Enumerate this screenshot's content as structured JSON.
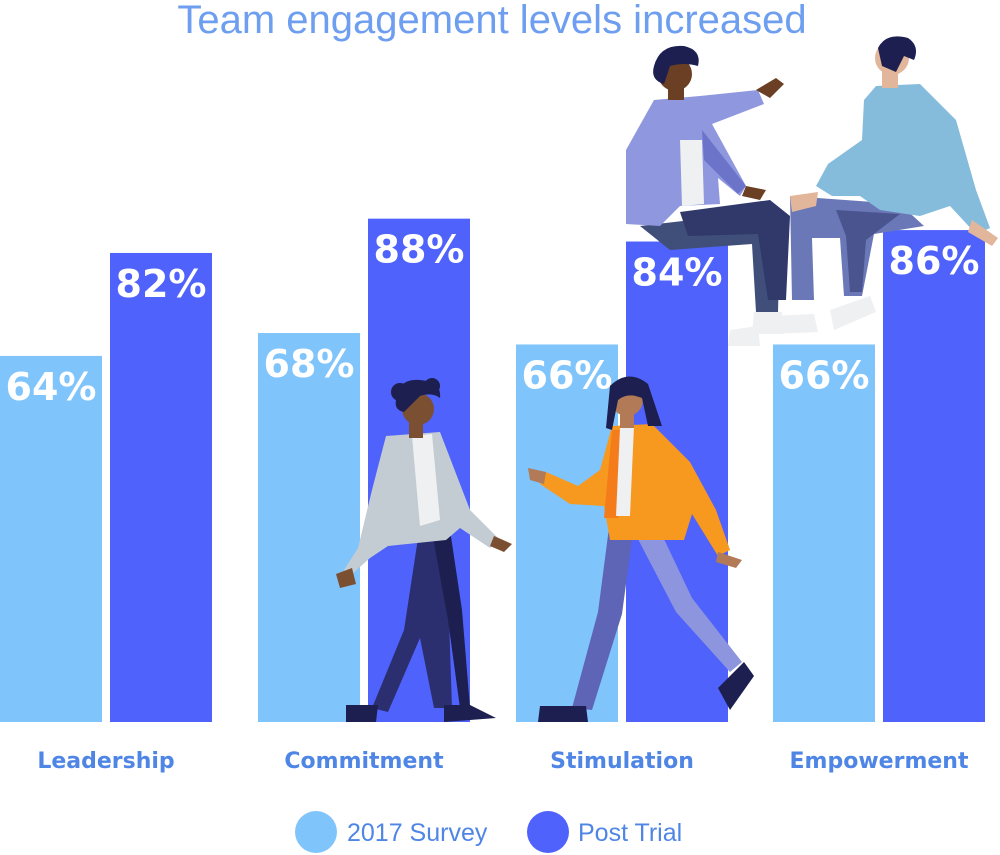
{
  "chart_data": {
    "type": "bar",
    "title": "Team engagement levels increased",
    "categories": [
      "Leadership",
      "Commitment",
      "Stimulation",
      "Empowerment"
    ],
    "series": [
      {
        "name": "2017 Survey",
        "values": [
          64,
          68,
          66,
          66
        ],
        "color": "#80c4fc"
      },
      {
        "name": "Post Trial",
        "values": [
          82,
          88,
          84,
          86
        ],
        "color": "#4f62fb"
      }
    ],
    "value_suffix": "%",
    "ylim": [
      0,
      100
    ],
    "grid": false,
    "legend": "bottom-center"
  }
}
